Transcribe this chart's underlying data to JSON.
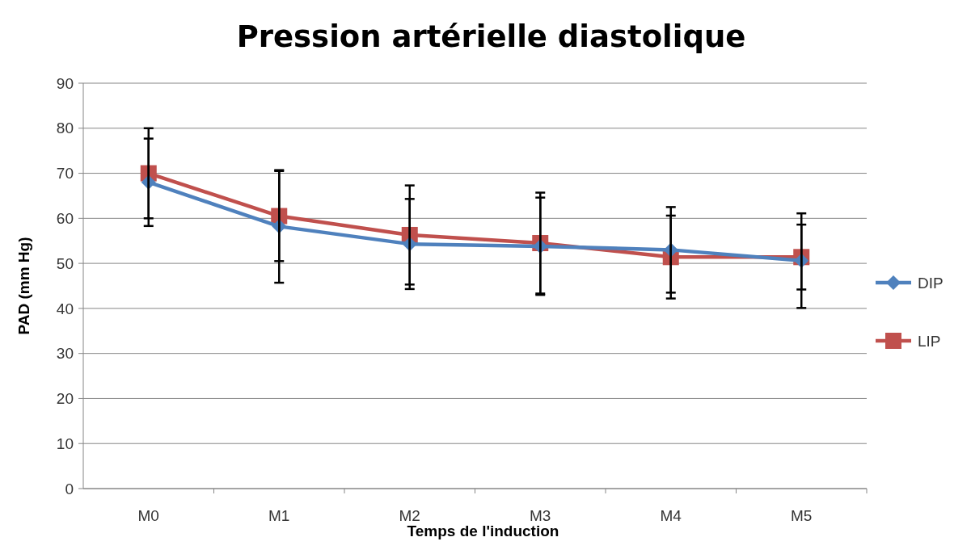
{
  "chart_data": {
    "type": "line",
    "title": "Pression artérielle diastolique",
    "xlabel": "Temps de l'induction",
    "ylabel": "PAD (mm Hg)",
    "categories": [
      "M0",
      "M1",
      "M2",
      "M3",
      "M4",
      "M5"
    ],
    "series": [
      {
        "name": "DIP",
        "color": "#4f81bd",
        "marker": "diamond",
        "values": [
          68,
          58.2,
          54.3,
          53.8,
          53,
          50.6
        ],
        "errors": [
          9.7,
          12.5,
          10,
          10.8,
          9.5,
          10.5
        ]
      },
      {
        "name": "LIP",
        "color": "#c0504d",
        "marker": "square",
        "values": [
          70,
          60.5,
          56.3,
          54.5,
          51.4,
          51.4
        ],
        "errors": [
          10,
          10,
          11,
          11.2,
          9.2,
          7.2
        ]
      }
    ],
    "ylim": [
      0,
      90
    ],
    "yticks": [
      0,
      10,
      20,
      30,
      40,
      50,
      60,
      70,
      80,
      90
    ],
    "grid": "y",
    "legend": "right"
  }
}
